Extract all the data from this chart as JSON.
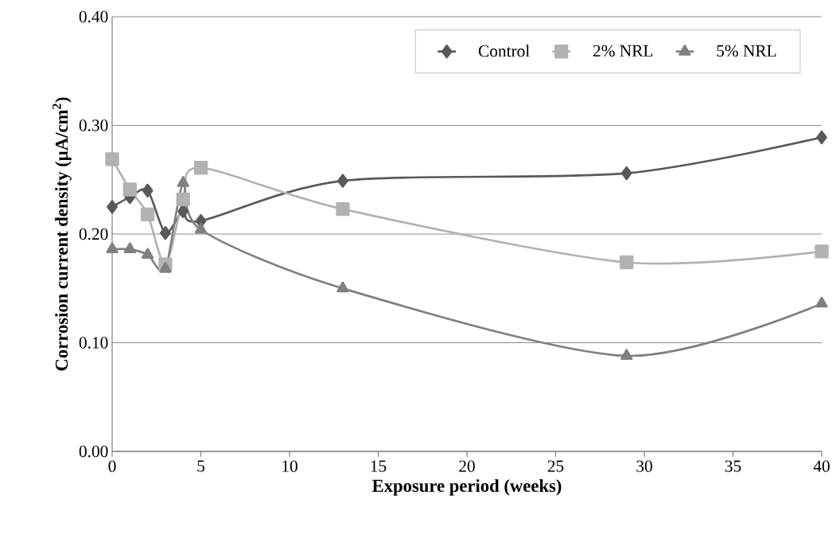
{
  "chart_data": {
    "type": "line",
    "xlabel": "Exposure period (weeks)",
    "ylabel": "Corrosion current density (µA/cm$^{2}$)",
    "x": [
      0,
      1,
      2,
      3,
      4,
      5,
      13,
      29,
      40
    ],
    "series": [
      {
        "name": "Control",
        "color": "#595959",
        "marker": "diamond",
        "values": [
          0.225,
          0.234,
          0.24,
          0.201,
          0.221,
          0.212,
          0.249,
          0.256,
          0.289
        ]
      },
      {
        "name": "2% NRL",
        "color": "#b2b2b2",
        "marker": "square",
        "values": [
          0.269,
          0.241,
          0.218,
          0.172,
          0.232,
          0.261,
          0.223,
          0.174,
          0.184
        ]
      },
      {
        "name": "5% NRL",
        "color": "#808080",
        "marker": "triangle",
        "values": [
          0.186,
          0.186,
          0.181,
          0.168,
          0.247,
          0.204,
          0.15,
          0.088,
          0.136
        ]
      }
    ],
    "xlim": [
      0,
      40
    ],
    "xticks": [
      0,
      5,
      10,
      15,
      20,
      25,
      30,
      35,
      40
    ],
    "ylim": [
      0,
      0.4
    ],
    "yticks": [
      {
        "value": 0,
        "label": "0.00"
      },
      {
        "value": 0.1,
        "label": "0.10"
      },
      {
        "value": 0.2,
        "label": "0.20"
      },
      {
        "value": 0.3,
        "label": "0.30"
      },
      {
        "value": 0.4,
        "label": "0.40"
      }
    ],
    "grid": "y",
    "legend": "top right",
    "line_style": "solid"
  }
}
